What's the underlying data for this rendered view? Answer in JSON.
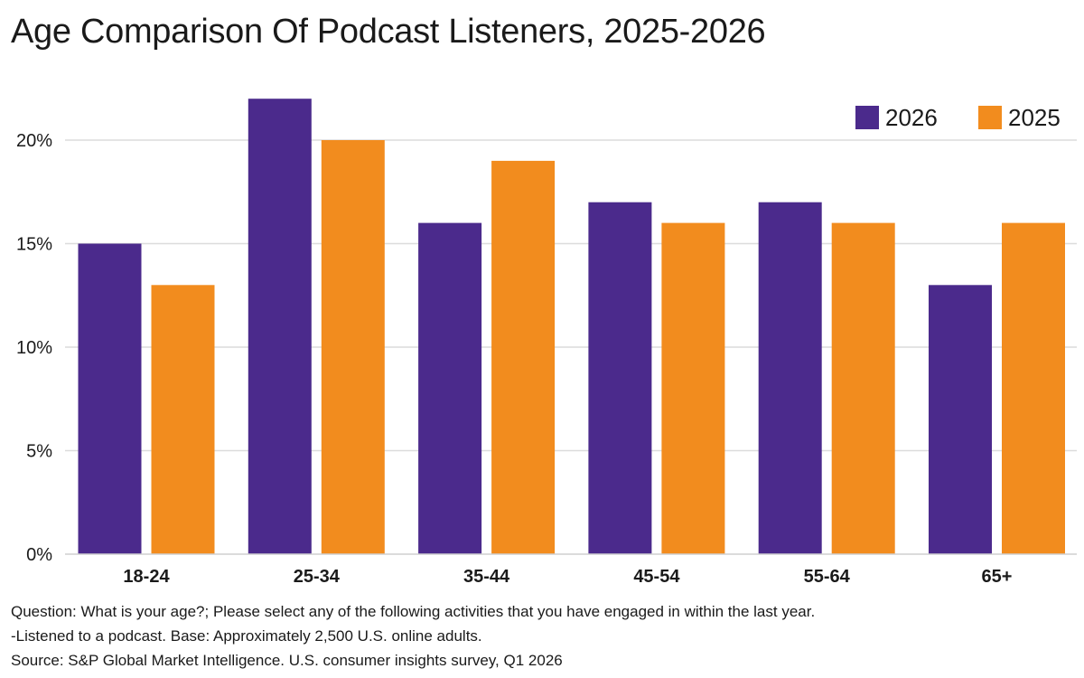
{
  "chart_data": {
    "type": "bar",
    "title": "Age Comparison Of Podcast Listeners, 2025-2026",
    "categories": [
      "18-24",
      "25-34",
      "35-44",
      "45-54",
      "55-64",
      "65+"
    ],
    "series": [
      {
        "name": "2026",
        "color": "#4B2A8C",
        "values": [
          15,
          22,
          16,
          17,
          17,
          13
        ]
      },
      {
        "name": "2025",
        "color": "#F28C1E",
        "values": [
          13,
          20,
          19,
          16,
          16,
          16
        ]
      }
    ],
    "ylim": [
      0,
      22
    ],
    "yticks": [
      0,
      5,
      10,
      15,
      20
    ],
    "ytick_labels": [
      "0%",
      "5%",
      "10%",
      "15%",
      "20%"
    ],
    "xlabel": "",
    "ylabel": "",
    "grid": true,
    "legend_position": "top-right"
  },
  "footnotes": {
    "question_line1": "Question: What is your age?; Please select any of the following activities that you have engaged in within the last year.",
    "question_line2": "-Listened to a podcast. Base: Approximately 2,500 U.S. online adults.",
    "source": "Source: S&P Global Market Intelligence. U.S. consumer insights survey, Q1 2026"
  }
}
